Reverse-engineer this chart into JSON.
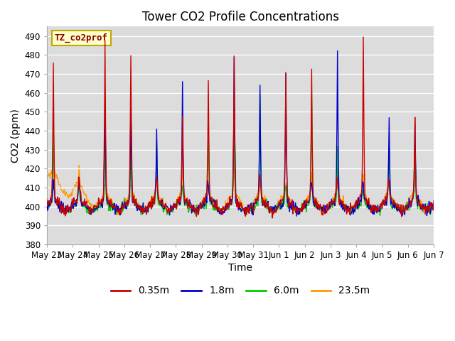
{
  "title": "Tower CO2 Profile Concentrations",
  "xlabel": "Time",
  "ylabel": "CO2 (ppm)",
  "ylim": [
    380,
    495
  ],
  "yticks": [
    380,
    390,
    400,
    410,
    420,
    430,
    440,
    450,
    460,
    470,
    480,
    490
  ],
  "series_labels": [
    "0.35m",
    "1.8m",
    "6.0m",
    "23.5m"
  ],
  "series_colors": [
    "#cc0000",
    "#0000cc",
    "#00cc00",
    "#ff9900"
  ],
  "plot_bg": "#dcdcdc",
  "annotation_text": "TZ_co2prof",
  "annotation_color": "#880000",
  "annotation_box_color": "#ffffcc",
  "annotation_box_edge": "#bbaa00",
  "x_tick_labels": [
    "May 23",
    "May 24",
    "May 25",
    "May 26",
    "May 27",
    "May 28",
    "May 29",
    "May 30",
    "May 31",
    "Jun 1",
    "Jun 2",
    "Jun 3",
    "Jun 4",
    "Jun 5",
    "Jun 6",
    "Jun 7"
  ],
  "base_co2": 398,
  "line_width": 1.0,
  "n_days": 15
}
